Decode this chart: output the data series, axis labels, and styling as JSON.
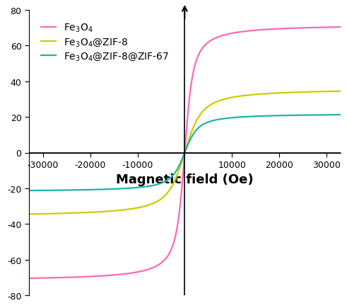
{
  "title": "",
  "xlabel": "Magnetic field (Oe)",
  "ylabel": "",
  "xlim": [
    -33000,
    33000
  ],
  "ylim": [
    -80,
    80
  ],
  "xticks": [
    -30000,
    -20000,
    -10000,
    10000,
    20000,
    30000
  ],
  "yticks": [
    -80,
    -60,
    -40,
    -20,
    0,
    20,
    40,
    60,
    80
  ],
  "colors": {
    "Fe3O4": "#ff69b4",
    "Fe3O4@ZIF-8": "#cccc00",
    "Fe3O4@ZIF-8@ZIF-67": "#20b2aa"
  },
  "background_color": "#ffffff",
  "legend_labels": [
    "Fe$_3$O$_4$",
    "Fe$_3$O$_4$@ZIF-8",
    "Fe$_3$O$_4$@ZIF-8@ZIF-67"
  ],
  "xlabel_fontsize": 13,
  "xlabel_fontweight": "bold",
  "tick_fontsize": 9,
  "legend_fontsize": 10,
  "linewidth": 1.6,
  "Ms1": 72,
  "a1": 700,
  "Ms2": 36,
  "a2": 1400,
  "Ms3": 22,
  "a3": 1100
}
